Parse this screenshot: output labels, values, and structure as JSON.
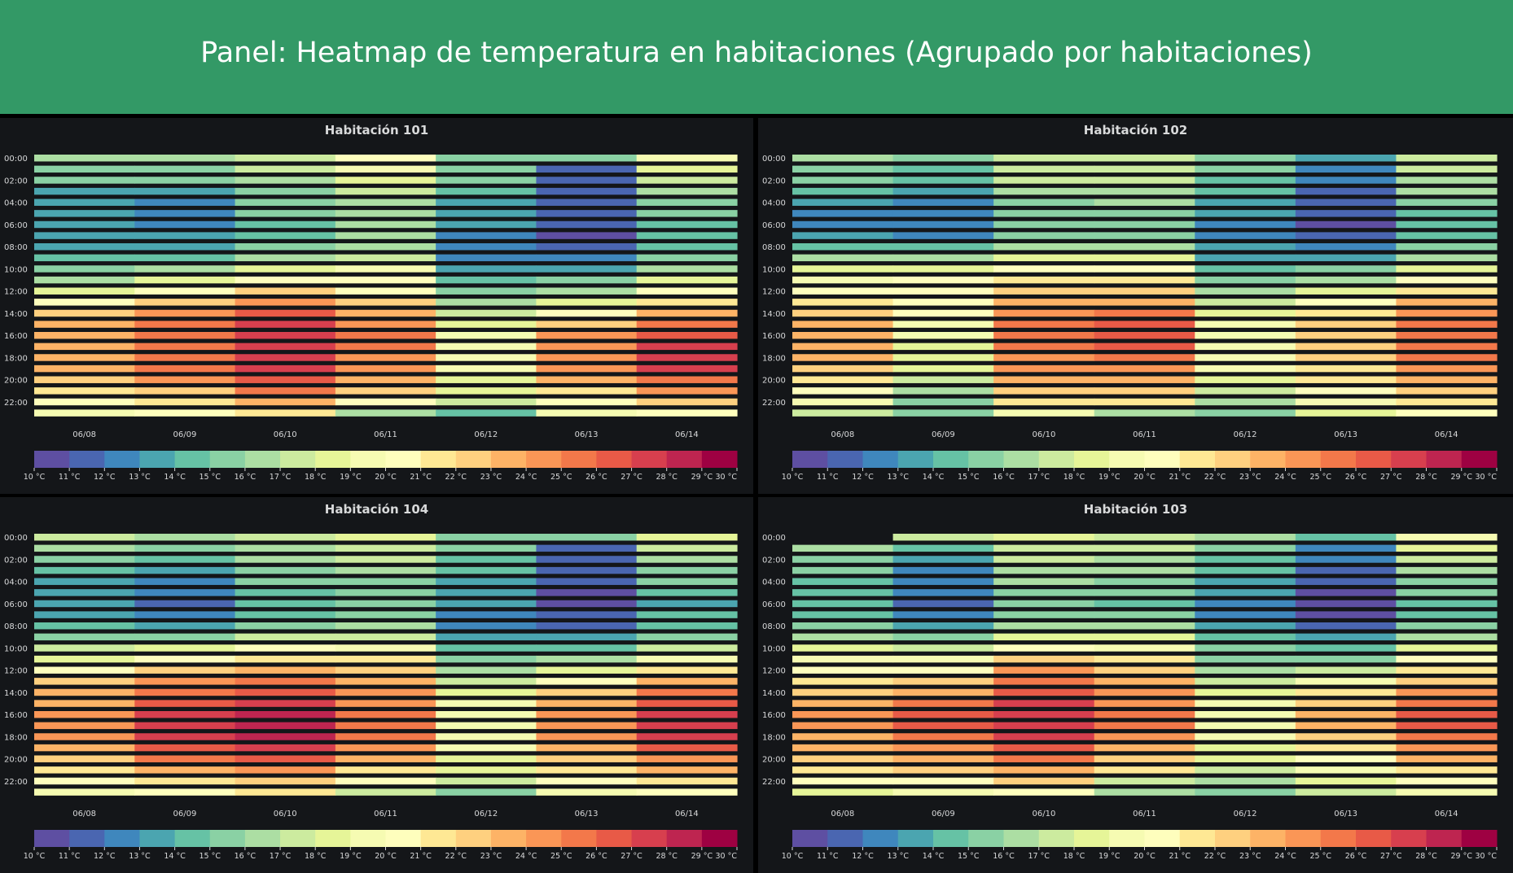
{
  "header": {
    "title": "Panel: Heatmap de temperatura en habitaciones (Agrupado por habitaciones)"
  },
  "colors": {
    "header_bg": "#339966",
    "panel_bg": "#141619",
    "scale": [
      "#5e4fa2",
      "#4a66b1",
      "#3f87bd",
      "#4ba5b0",
      "#66c2a5",
      "#8ad1a4",
      "#acdea3",
      "#cceb9f",
      "#e6f598",
      "#f6fbb2",
      "#fefebd",
      "#fee894",
      "#fed07f",
      "#fdb366",
      "#fa9656",
      "#f3784a",
      "#e85a47",
      "#d73f4e",
      "#be2550",
      "#9e0142"
    ]
  },
  "chart_data": [
    {
      "type": "heatmap",
      "title": "Habitación 101",
      "x_labels": [
        "06/08",
        "06/09",
        "06/10",
        "06/11",
        "06/12",
        "06/13",
        "06/14"
      ],
      "y_labels": [
        "00:00",
        "02:00",
        "04:00",
        "06:00",
        "08:00",
        "10:00",
        "12:00",
        "14:00",
        "16:00",
        "18:00",
        "20:00",
        "22:00"
      ],
      "legend_labels": [
        "10 °C",
        "11 °C",
        "12 °C",
        "13 °C",
        "14 °C",
        "15 °C",
        "16 °C",
        "17 °C",
        "18 °C",
        "19 °C",
        "20 °C",
        "21 °C",
        "22 °C",
        "23 °C",
        "24 °C",
        "25 °C",
        "26 °C",
        "27 °C",
        "28 °C",
        "29 °C",
        "30 °C"
      ],
      "value_range": [
        10,
        30
      ],
      "values": [
        [
          16,
          16,
          17,
          20,
          15,
          15,
          19
        ],
        [
          15,
          15,
          17,
          19,
          15,
          11,
          18
        ],
        [
          15,
          15,
          16,
          18,
          15,
          11,
          17
        ],
        [
          13,
          13,
          15,
          17,
          14,
          11,
          16
        ],
        [
          13,
          12,
          15,
          16,
          13,
          11,
          15
        ],
        [
          13,
          12,
          15,
          16,
          13,
          11,
          15
        ],
        [
          13,
          12,
          14,
          16,
          13,
          11,
          14
        ],
        [
          13,
          13,
          14,
          16,
          12,
          10,
          14
        ],
        [
          13,
          13,
          15,
          16,
          12,
          11,
          14
        ],
        [
          14,
          14,
          16,
          17,
          12,
          12,
          15
        ],
        [
          15,
          16,
          18,
          19,
          13,
          13,
          16
        ],
        [
          16,
          18,
          20,
          20,
          14,
          15,
          18
        ],
        [
          18,
          20,
          22,
          20,
          15,
          16,
          20
        ],
        [
          20,
          22,
          24,
          22,
          16,
          18,
          21
        ],
        [
          22,
          24,
          26,
          23,
          17,
          20,
          23
        ],
        [
          23,
          25,
          27,
          24,
          18,
          22,
          25
        ],
        [
          23,
          25,
          27,
          25,
          19,
          24,
          26
        ],
        [
          23,
          25,
          27,
          25,
          19,
          24,
          27
        ],
        [
          23,
          25,
          27,
          24,
          19,
          24,
          27
        ],
        [
          23,
          25,
          27,
          24,
          19,
          24,
          27
        ],
        [
          22,
          24,
          26,
          23,
          18,
          23,
          25
        ],
        [
          21,
          22,
          25,
          22,
          18,
          21,
          24
        ],
        [
          20,
          21,
          23,
          20,
          17,
          20,
          22
        ],
        [
          19,
          20,
          21,
          16,
          14,
          19,
          20
        ]
      ]
    },
    {
      "type": "heatmap",
      "title": "Habitación 102",
      "x_labels": [
        "06/08",
        "06/09",
        "06/10",
        "06/11",
        "06/12",
        "06/13",
        "06/14"
      ],
      "y_labels": [
        "00:00",
        "02:00",
        "04:00",
        "06:00",
        "08:00",
        "10:00",
        "12:00",
        "14:00",
        "16:00",
        "18:00",
        "20:00",
        "22:00"
      ],
      "legend_labels": [
        "10 °C",
        "11 °C",
        "12 °C",
        "13 °C",
        "14 °C",
        "15 °C",
        "16 °C",
        "17 °C",
        "18 °C",
        "19 °C",
        "20 °C",
        "21 °C",
        "22 °C",
        "23 °C",
        "24 °C",
        "25 °C",
        "26 °C",
        "27 °C",
        "28 °C",
        "29 °C",
        "30 °C"
      ],
      "value_range": [
        10,
        30
      ],
      "values": [
        [
          16,
          15,
          17,
          17,
          15,
          13,
          17
        ],
        [
          15,
          14,
          17,
          17,
          15,
          12,
          17
        ],
        [
          15,
          14,
          17,
          17,
          14,
          12,
          16
        ],
        [
          14,
          13,
          16,
          16,
          14,
          11,
          16
        ],
        [
          13,
          12,
          15,
          16,
          13,
          11,
          15
        ],
        [
          12,
          12,
          15,
          15,
          13,
          11,
          14
        ],
        [
          12,
          12,
          15,
          15,
          12,
          10,
          14
        ],
        [
          13,
          12,
          15,
          15,
          12,
          11,
          14
        ],
        [
          14,
          14,
          16,
          16,
          13,
          12,
          15
        ],
        [
          16,
          16,
          18,
          18,
          13,
          13,
          16
        ],
        [
          18,
          18,
          20,
          20,
          14,
          15,
          18
        ],
        [
          19,
          20,
          21,
          21,
          15,
          16,
          20
        ],
        [
          20,
          20,
          22,
          22,
          16,
          18,
          21
        ],
        [
          21,
          20,
          23,
          23,
          17,
          20,
          23
        ],
        [
          22,
          20,
          24,
          25,
          18,
          21,
          24
        ],
        [
          23,
          19,
          25,
          26,
          19,
          22,
          25
        ],
        [
          23,
          19,
          25,
          26,
          19,
          22,
          25
        ],
        [
          23,
          18,
          25,
          26,
          19,
          22,
          25
        ],
        [
          23,
          18,
          24,
          25,
          19,
          22,
          25
        ],
        [
          22,
          18,
          24,
          24,
          19,
          21,
          24
        ],
        [
          21,
          17,
          23,
          23,
          18,
          21,
          23
        ],
        [
          20,
          16,
          22,
          22,
          17,
          20,
          22
        ],
        [
          19,
          15,
          21,
          21,
          16,
          19,
          21
        ],
        [
          17,
          15,
          19,
          16,
          15,
          18,
          20
        ]
      ]
    },
    {
      "type": "heatmap",
      "title": "Habitación 104",
      "x_labels": [
        "06/08",
        "06/09",
        "06/10",
        "06/11",
        "06/12",
        "06/13",
        "06/14"
      ],
      "y_labels": [
        "00:00",
        "02:00",
        "04:00",
        "06:00",
        "08:00",
        "10:00",
        "12:00",
        "14:00",
        "16:00",
        "18:00",
        "20:00",
        "22:00"
      ],
      "legend_labels": [
        "10 °C",
        "11 °C",
        "12 °C",
        "13 °C",
        "14 °C",
        "15 °C",
        "16 °C",
        "17 °C",
        "18 °C",
        "19 °C",
        "20 °C",
        "21 °C",
        "22 °C",
        "23 °C",
        "24 °C",
        "25 °C",
        "26 °C",
        "27 °C",
        "28 °C",
        "29 °C",
        "30 °C"
      ],
      "value_range": [
        10,
        30
      ],
      "values": [
        [
          17,
          16,
          17,
          18,
          15,
          15,
          18
        ],
        [
          16,
          15,
          16,
          17,
          15,
          11,
          17
        ],
        [
          15,
          14,
          16,
          17,
          14,
          11,
          16
        ],
        [
          14,
          13,
          15,
          16,
          14,
          11,
          15
        ],
        [
          13,
          12,
          15,
          15,
          13,
          11,
          15
        ],
        [
          13,
          12,
          14,
          15,
          13,
          10,
          14
        ],
        [
          13,
          11,
          14,
          15,
          13,
          10,
          13
        ],
        [
          13,
          12,
          14,
          15,
          12,
          11,
          14
        ],
        [
          14,
          13,
          15,
          16,
          12,
          11,
          14
        ],
        [
          15,
          15,
          17,
          17,
          13,
          13,
          15
        ],
        [
          17,
          18,
          20,
          19,
          14,
          14,
          17
        ],
        [
          18,
          20,
          21,
          21,
          15,
          16,
          19
        ],
        [
          20,
          22,
          23,
          22,
          16,
          18,
          21
        ],
        [
          22,
          24,
          25,
          23,
          17,
          20,
          23
        ],
        [
          23,
          25,
          26,
          24,
          18,
          22,
          25
        ],
        [
          23,
          26,
          27,
          24,
          19,
          23,
          26
        ],
        [
          24,
          27,
          28,
          25,
          19,
          24,
          27
        ],
        [
          24,
          27,
          28,
          25,
          19,
          24,
          27
        ],
        [
          24,
          27,
          28,
          25,
          19,
          24,
          27
        ],
        [
          23,
          26,
          27,
          24,
          19,
          23,
          26
        ],
        [
          22,
          25,
          26,
          23,
          18,
          22,
          24
        ],
        [
          21,
          23,
          24,
          21,
          18,
          21,
          23
        ],
        [
          20,
          21,
          22,
          20,
          17,
          20,
          21
        ],
        [
          19,
          20,
          21,
          17,
          15,
          19,
          20
        ]
      ]
    },
    {
      "type": "heatmap",
      "title": "Habitación 103",
      "x_labels": [
        "06/08",
        "06/09",
        "06/10",
        "06/11",
        "06/12",
        "06/13",
        "06/14"
      ],
      "y_labels": [
        "00:00",
        "02:00",
        "04:00",
        "06:00",
        "08:00",
        "10:00",
        "12:00",
        "14:00",
        "16:00",
        "18:00",
        "20:00",
        "22:00"
      ],
      "legend_labels": [
        "10 °C",
        "11 °C",
        "12 °C",
        "13 °C",
        "14 °C",
        "15 °C",
        "16 °C",
        "17 °C",
        "18 °C",
        "19 °C",
        "20 °C",
        "21 °C",
        "22 °C",
        "23 °C",
        "24 °C",
        "25 °C",
        "26 °C",
        "27 °C",
        "28 °C",
        "29 °C",
        "30 °C"
      ],
      "value_range": [
        10,
        30
      ],
      "values": [
        [
          null,
          17,
          18,
          17,
          16,
          14,
          19
        ],
        [
          16,
          14,
          17,
          17,
          15,
          12,
          18
        ],
        [
          15,
          13,
          17,
          16,
          14,
          12,
          17
        ],
        [
          15,
          12,
          16,
          16,
          14,
          11,
          16
        ],
        [
          14,
          12,
          16,
          15,
          13,
          11,
          15
        ],
        [
          14,
          12,
          15,
          15,
          13,
          10,
          15
        ],
        [
          14,
          11,
          15,
          14,
          12,
          10,
          14
        ],
        [
          14,
          12,
          15,
          15,
          12,
          10,
          14
        ],
        [
          15,
          13,
          16,
          16,
          13,
          11,
          15
        ],
        [
          16,
          15,
          18,
          18,
          14,
          13,
          16
        ],
        [
          18,
          17,
          20,
          19,
          15,
          14,
          18
        ],
        [
          19,
          19,
          22,
          21,
          15,
          15,
          20
        ],
        [
          20,
          20,
          24,
          22,
          16,
          17,
          21
        ],
        [
          21,
          22,
          25,
          23,
          17,
          19,
          22
        ],
        [
          22,
          23,
          26,
          24,
          18,
          21,
          24
        ],
        [
          23,
          25,
          27,
          24,
          19,
          22,
          25
        ],
        [
          24,
          26,
          27,
          25,
          19,
          23,
          26
        ],
        [
          24,
          26,
          27,
          25,
          19,
          23,
          26
        ],
        [
          23,
          25,
          27,
          24,
          19,
          22,
          25
        ],
        [
          23,
          24,
          26,
          23,
          18,
          21,
          24
        ],
        [
          22,
          23,
          25,
          22,
          18,
          20,
          23
        ],
        [
          21,
          22,
          23,
          21,
          17,
          19,
          21
        ],
        [
          20,
          20,
          22,
          17,
          16,
          18,
          20
        ],
        [
          18,
          19,
          20,
          16,
          15,
          17,
          19
        ]
      ]
    }
  ]
}
